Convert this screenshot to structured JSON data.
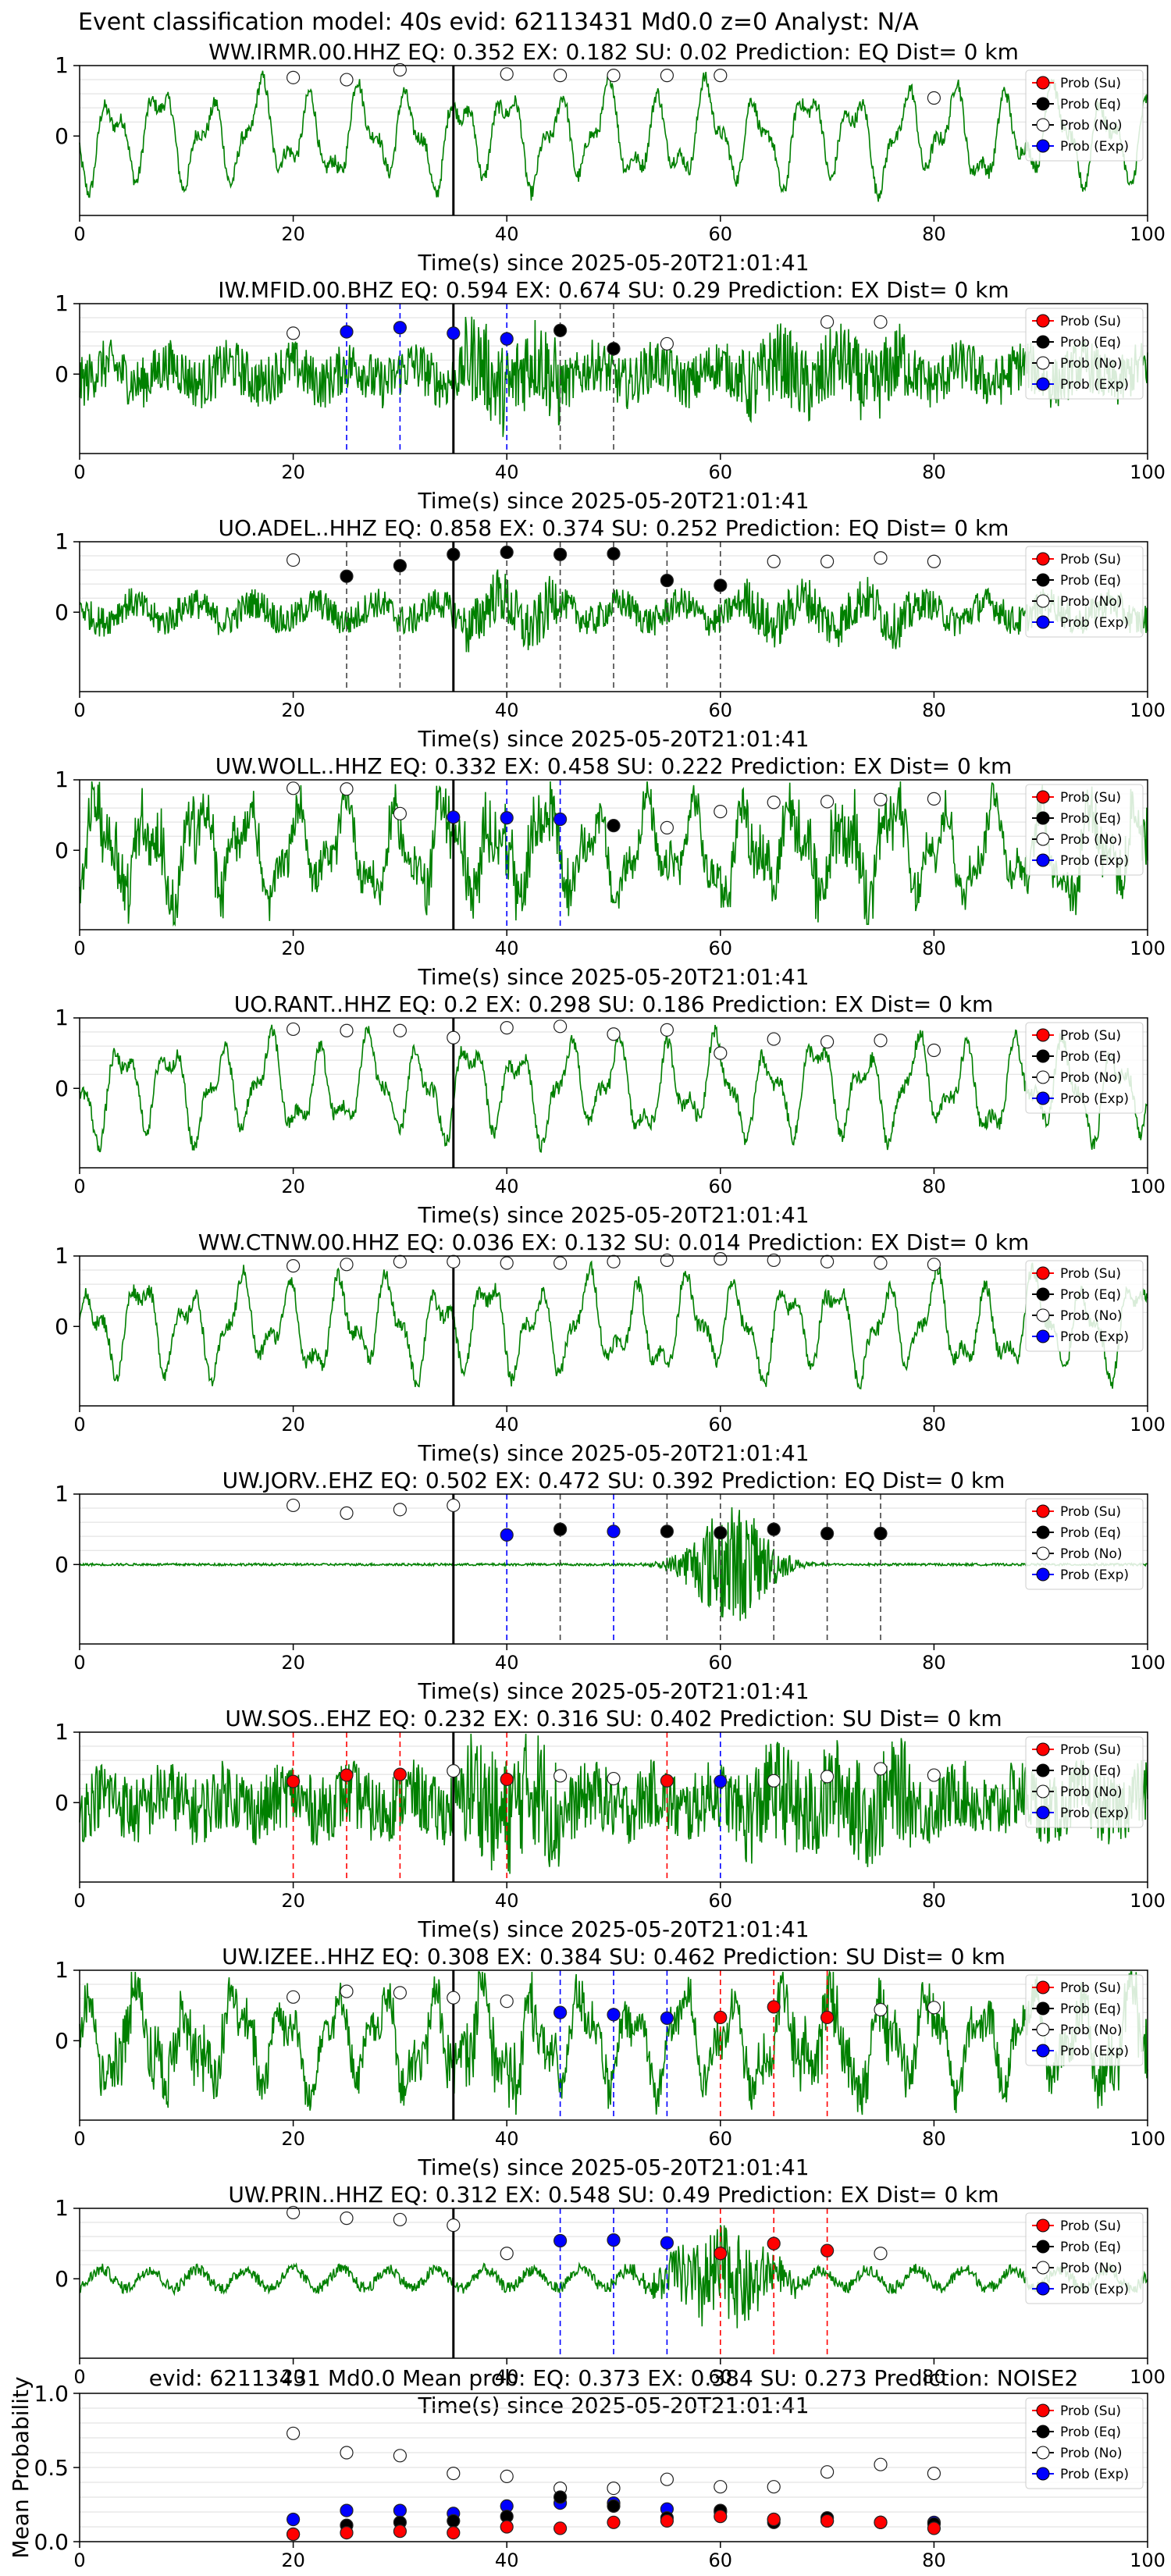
{
  "figure_title": "Event classification model: 40s evid: 62113431 Md0.0 z=0 Analyst: N/A",
  "colors": {
    "waveform": "#008000",
    "su": "#ff0000",
    "eq": "#000000",
    "no": "#ffffff",
    "exp": "#0000ff",
    "grid": "#dddddd",
    "legend_border": "#cccccc"
  },
  "chart_data": [
    {
      "type": "line",
      "title": "WW.IRMR.00.HHZ   EQ: 0.352  EX: 0.182  SU: 0.02   Prediction: EQ    Dist= 0 km",
      "xlabel": "Time(s) since 2025-05-20T21:01:41",
      "xlim": [
        0,
        100
      ],
      "xticks": [
        "0",
        "20",
        "40",
        "60",
        "80",
        "100"
      ],
      "ytick_labels": [
        "1",
        "0"
      ],
      "legend": [
        "Prob (Su)",
        "Prob (Eq)",
        "Prob (No)",
        "Prob (Exp)"
      ],
      "origin_time": 35,
      "waveform_style": "smooth",
      "noise_level": 0.12,
      "points": {
        "su": [],
        "eq": [],
        "exp": [],
        "no": [
          [
            20,
            0.83
          ],
          [
            25,
            0.8
          ],
          [
            30,
            0.94
          ],
          [
            40,
            0.88
          ],
          [
            45,
            0.86
          ],
          [
            50,
            0.86
          ],
          [
            55,
            0.86
          ],
          [
            60,
            0.86
          ],
          [
            80,
            0.54
          ]
        ]
      },
      "vlines": {
        "eq": [],
        "exp": [],
        "su": []
      }
    },
    {
      "type": "line",
      "title": "IW.MFID.00.BHZ   EQ: 0.594  EX: 0.674  SU: 0.29   Prediction: EX    Dist= 0 km",
      "xlabel": "Time(s) since 2025-05-20T21:01:41",
      "xlim": [
        0,
        100
      ],
      "xticks": [
        "0",
        "20",
        "40",
        "60",
        "80",
        "100"
      ],
      "ytick_labels": [
        "1",
        "0"
      ],
      "legend": [
        "Prob (Su)",
        "Prob (Eq)",
        "Prob (No)",
        "Prob (Exp)"
      ],
      "origin_time": 35,
      "waveform_style": "noisy",
      "noise_level": 0.3,
      "points": {
        "su": [],
        "eq": [
          [
            45,
            0.62
          ],
          [
            50,
            0.36
          ]
        ],
        "exp": [
          [
            25,
            0.6
          ],
          [
            30,
            0.66
          ],
          [
            35,
            0.58
          ],
          [
            40,
            0.5
          ]
        ],
        "no": [
          [
            20,
            0.58
          ],
          [
            55,
            0.43
          ],
          [
            70,
            0.74
          ],
          [
            75,
            0.74
          ]
        ]
      },
      "vlines": {
        "eq": [
          45,
          50
        ],
        "exp": [
          25,
          30,
          35,
          40
        ],
        "su": []
      }
    },
    {
      "type": "line",
      "title": "UO.ADEL..HHZ   EQ: 0.858  EX: 0.374  SU: 0.252   Prediction: EQ    Dist= 0 km",
      "xlabel": "Time(s) since 2025-05-20T21:01:41",
      "xlim": [
        0,
        100
      ],
      "xticks": [
        "0",
        "20",
        "40",
        "60",
        "80",
        "100"
      ],
      "ytick_labels": [
        "1",
        "0"
      ],
      "legend": [
        "Prob (Su)",
        "Prob (Eq)",
        "Prob (No)",
        "Prob (Exp)"
      ],
      "origin_time": 35,
      "waveform_style": "noisy",
      "noise_level": 0.18,
      "points": {
        "su": [],
        "eq": [
          [
            25,
            0.51
          ],
          [
            30,
            0.66
          ],
          [
            35,
            0.82
          ],
          [
            40,
            0.85
          ],
          [
            45,
            0.82
          ],
          [
            50,
            0.83
          ],
          [
            55,
            0.45
          ],
          [
            60,
            0.38
          ]
        ],
        "exp": [],
        "no": [
          [
            20,
            0.74
          ],
          [
            65,
            0.72
          ],
          [
            70,
            0.72
          ],
          [
            75,
            0.77
          ],
          [
            80,
            0.72
          ]
        ]
      },
      "vlines": {
        "eq": [
          25,
          30,
          40,
          45,
          50,
          55,
          60
        ],
        "exp": [],
        "su": []
      }
    },
    {
      "type": "line",
      "title": "UW.WOLL..HHZ   EQ: 0.332  EX: 0.458  SU: 0.222   Prediction: EX    Dist= 0 km",
      "xlabel": "Time(s) since 2025-05-20T21:01:41",
      "xlim": [
        0,
        100
      ],
      "xticks": [
        "0",
        "20",
        "40",
        "60",
        "80",
        "100"
      ],
      "ytick_labels": [
        "1",
        "0"
      ],
      "legend": [
        "Prob (Su)",
        "Prob (Eq)",
        "Prob (No)",
        "Prob (Exp)"
      ],
      "origin_time": 35,
      "waveform_style": "mixed",
      "noise_level": 0.3,
      "points": {
        "su": [],
        "eq": [
          [
            50,
            0.35
          ]
        ],
        "exp": [
          [
            35,
            0.47
          ],
          [
            40,
            0.46
          ],
          [
            45,
            0.44
          ]
        ],
        "no": [
          [
            20,
            0.88
          ],
          [
            25,
            0.87
          ],
          [
            30,
            0.52
          ],
          [
            55,
            0.32
          ],
          [
            60,
            0.55
          ],
          [
            65,
            0.68
          ],
          [
            70,
            0.69
          ],
          [
            75,
            0.72
          ],
          [
            80,
            0.73
          ]
        ]
      },
      "vlines": {
        "eq": [],
        "exp": [
          40,
          45
        ],
        "su": []
      }
    },
    {
      "type": "line",
      "title": "UO.RANT..HHZ   EQ: 0.2  EX: 0.298  SU: 0.186   Prediction: EX    Dist= 0 km",
      "xlabel": "Time(s) since 2025-05-20T21:01:41",
      "xlim": [
        0,
        100
      ],
      "xticks": [
        "0",
        "20",
        "40",
        "60",
        "80",
        "100"
      ],
      "ytick_labels": [
        "1",
        "0"
      ],
      "legend": [
        "Prob (Su)",
        "Prob (Eq)",
        "Prob (No)",
        "Prob (Exp)"
      ],
      "origin_time": 35,
      "waveform_style": "smooth",
      "noise_level": 0.12,
      "points": {
        "su": [],
        "eq": [],
        "exp": [],
        "no": [
          [
            20,
            0.84
          ],
          [
            25,
            0.82
          ],
          [
            30,
            0.82
          ],
          [
            35,
            0.72
          ],
          [
            40,
            0.86
          ],
          [
            45,
            0.88
          ],
          [
            50,
            0.77
          ],
          [
            55,
            0.83
          ],
          [
            60,
            0.5
          ],
          [
            65,
            0.7
          ],
          [
            70,
            0.66
          ],
          [
            75,
            0.68
          ],
          [
            80,
            0.54
          ]
        ]
      },
      "vlines": {
        "eq": [],
        "exp": [],
        "su": []
      }
    },
    {
      "type": "line",
      "title": "WW.CTNW.00.HHZ   EQ: 0.036  EX: 0.132  SU: 0.014   Prediction: EX    Dist= 0 km",
      "xlabel": "Time(s) since 2025-05-20T21:01:41",
      "xlim": [
        0,
        100
      ],
      "xticks": [
        "0",
        "20",
        "40",
        "60",
        "80",
        "100"
      ],
      "ytick_labels": [
        "1",
        "0"
      ],
      "legend": [
        "Prob (Su)",
        "Prob (Eq)",
        "Prob (No)",
        "Prob (Exp)"
      ],
      "origin_time": 35,
      "waveform_style": "smooth",
      "noise_level": 0.12,
      "points": {
        "su": [],
        "eq": [],
        "exp": [],
        "no": [
          [
            20,
            0.86
          ],
          [
            25,
            0.88
          ],
          [
            30,
            0.92
          ],
          [
            35,
            0.92
          ],
          [
            40,
            0.9
          ],
          [
            45,
            0.9
          ],
          [
            50,
            0.92
          ],
          [
            55,
            0.94
          ],
          [
            60,
            0.96
          ],
          [
            65,
            0.94
          ],
          [
            70,
            0.92
          ],
          [
            75,
            0.9
          ],
          [
            80,
            0.88
          ]
        ]
      },
      "vlines": {
        "eq": [],
        "exp": [],
        "su": []
      }
    },
    {
      "type": "line",
      "title": "UW.JORV..EHZ   EQ: 0.502  EX: 0.472  SU: 0.392   Prediction: EQ    Dist= 0 km",
      "xlabel": "Time(s) since 2025-05-20T21:01:41",
      "xlim": [
        0,
        100
      ],
      "xticks": [
        "0",
        "20",
        "40",
        "60",
        "80",
        "100"
      ],
      "ytick_labels": [
        "1",
        "0"
      ],
      "legend": [
        "Prob (Su)",
        "Prob (Eq)",
        "Prob (No)",
        "Prob (Exp)"
      ],
      "origin_time": 35,
      "waveform_style": "burst",
      "noise_level": 0.03,
      "points": {
        "su": [],
        "eq": [
          [
            45,
            0.5
          ],
          [
            55,
            0.47
          ],
          [
            60,
            0.45
          ],
          [
            65,
            0.5
          ],
          [
            70,
            0.44
          ],
          [
            75,
            0.44
          ]
        ],
        "exp": [
          [
            40,
            0.42
          ],
          [
            50,
            0.47
          ]
        ],
        "no": [
          [
            20,
            0.84
          ],
          [
            25,
            0.73
          ],
          [
            30,
            0.78
          ],
          [
            35,
            0.84
          ]
        ]
      },
      "vlines": {
        "eq": [
          45,
          55,
          60,
          65,
          70,
          75
        ],
        "exp": [
          40,
          50
        ],
        "su": []
      }
    },
    {
      "type": "line",
      "title": "UW.SOS..EHZ   EQ: 0.232  EX: 0.316  SU: 0.402   Prediction: SU    Dist= 0 km",
      "xlabel": "Time(s) since 2025-05-20T21:01:41",
      "xlim": [
        0,
        100
      ],
      "xticks": [
        "0",
        "20",
        "40",
        "60",
        "80",
        "100"
      ],
      "ytick_labels": [
        "1",
        "0"
      ],
      "legend": [
        "Prob (Su)",
        "Prob (Eq)",
        "Prob (No)",
        "Prob (Exp)"
      ],
      "origin_time": 35,
      "waveform_style": "noisy",
      "noise_level": 0.4,
      "points": {
        "su": [
          [
            20,
            0.3
          ],
          [
            25,
            0.39
          ],
          [
            30,
            0.4
          ],
          [
            40,
            0.33
          ],
          [
            55,
            0.31
          ]
        ],
        "eq": [],
        "exp": [
          [
            60,
            0.3
          ]
        ],
        "no": [
          [
            35,
            0.45
          ],
          [
            45,
            0.38
          ],
          [
            50,
            0.34
          ],
          [
            65,
            0.31
          ],
          [
            70,
            0.37
          ],
          [
            75,
            0.48
          ],
          [
            80,
            0.39
          ]
        ]
      },
      "vlines": {
        "eq": [],
        "exp": [
          60
        ],
        "su": [
          20,
          25,
          30,
          40,
          55
        ]
      }
    },
    {
      "type": "line",
      "title": "UW.IZEE..HHZ   EQ: 0.308  EX: 0.384  SU: 0.462   Prediction: SU    Dist= 0 km",
      "xlabel": "Time(s) since 2025-05-20T21:01:41",
      "xlim": [
        0,
        100
      ],
      "xticks": [
        "0",
        "20",
        "40",
        "60",
        "80",
        "100"
      ],
      "ytick_labels": [
        "1",
        "0"
      ],
      "legend": [
        "Prob (Su)",
        "Prob (Eq)",
        "Prob (No)",
        "Prob (Exp)"
      ],
      "origin_time": 35,
      "waveform_style": "mixed",
      "noise_level": 0.3,
      "points": {
        "su": [
          [
            60,
            0.33
          ],
          [
            65,
            0.48
          ],
          [
            70,
            0.33
          ]
        ],
        "eq": [],
        "exp": [
          [
            45,
            0.4
          ],
          [
            50,
            0.37
          ],
          [
            55,
            0.32
          ]
        ],
        "no": [
          [
            20,
            0.62
          ],
          [
            25,
            0.7
          ],
          [
            30,
            0.68
          ],
          [
            35,
            0.61
          ],
          [
            40,
            0.56
          ],
          [
            75,
            0.44
          ],
          [
            80,
            0.47
          ]
        ]
      },
      "vlines": {
        "eq": [],
        "exp": [
          45,
          50,
          55
        ],
        "su": [
          60,
          65,
          70
        ]
      }
    },
    {
      "type": "line",
      "title": "UW.PRIN..HHZ   EQ: 0.312  EX: 0.548  SU: 0.49   Prediction: EX    Dist= 0 km",
      "xlabel": "Time(s) since 2025-05-20T21:01:41",
      "xlim": [
        0,
        100
      ],
      "xticks": [
        "0",
        "20",
        "40",
        "60",
        "80",
        "100"
      ],
      "ytick_labels": [
        "1",
        "0"
      ],
      "legend": [
        "Prob (Su)",
        "Prob (Eq)",
        "Prob (No)",
        "Prob (Exp)"
      ],
      "origin_time": 35,
      "waveform_style": "burst2",
      "noise_level": 0.1,
      "points": {
        "su": [
          [
            60,
            0.36
          ],
          [
            65,
            0.5
          ],
          [
            70,
            0.4
          ]
        ],
        "eq": [],
        "exp": [
          [
            45,
            0.54
          ],
          [
            50,
            0.55
          ],
          [
            55,
            0.51
          ]
        ],
        "no": [
          [
            20,
            0.94
          ],
          [
            25,
            0.86
          ],
          [
            30,
            0.84
          ],
          [
            35,
            0.76
          ],
          [
            40,
            0.36
          ],
          [
            75,
            0.36
          ]
        ]
      },
      "vlines": {
        "eq": [],
        "exp": [
          45,
          50,
          55
        ],
        "su": [
          60,
          65,
          70
        ]
      }
    },
    {
      "type": "scatter",
      "title": "evid: 62113431  Md0.0   Mean prob:   EQ: 0.373  EX: 0.384  SU: 0.273   Prediction: NOISE2",
      "ylabel": "Mean Probability",
      "xlim": [
        0,
        100
      ],
      "ylim": [
        0,
        1
      ],
      "xticks": [
        "0",
        "20",
        "40",
        "60",
        "80",
        "100"
      ],
      "yticks": [
        "0.0",
        "0.5",
        "1.0"
      ],
      "legend": [
        "Prob (Su)",
        "Prob (Eq)",
        "Prob (No)",
        "Prob (Exp)"
      ],
      "x": [
        20,
        25,
        30,
        35,
        40,
        45,
        50,
        55,
        60,
        65,
        70,
        75,
        80
      ],
      "series": [
        {
          "name": "Prob (Su)",
          "values": [
            0.05,
            0.06,
            0.07,
            0.06,
            0.1,
            0.09,
            0.13,
            0.14,
            0.17,
            0.15,
            0.14,
            0.13,
            0.09
          ]
        },
        {
          "name": "Prob (Eq)",
          "values": [
            0.05,
            0.11,
            0.13,
            0.14,
            0.17,
            0.3,
            0.24,
            0.16,
            0.21,
            0.13,
            0.16,
            0.13,
            0.12
          ]
        },
        {
          "name": "Prob (No)",
          "values": [
            0.73,
            0.6,
            0.58,
            0.46,
            0.44,
            0.36,
            0.36,
            0.42,
            0.37,
            0.37,
            0.47,
            0.52,
            0.46
          ]
        },
        {
          "name": "Prob (Exp)",
          "values": [
            0.15,
            0.21,
            0.21,
            0.19,
            0.24,
            0.26,
            0.26,
            0.22,
            0.2,
            0.15,
            0.14,
            0.13,
            0.13
          ]
        }
      ]
    }
  ]
}
